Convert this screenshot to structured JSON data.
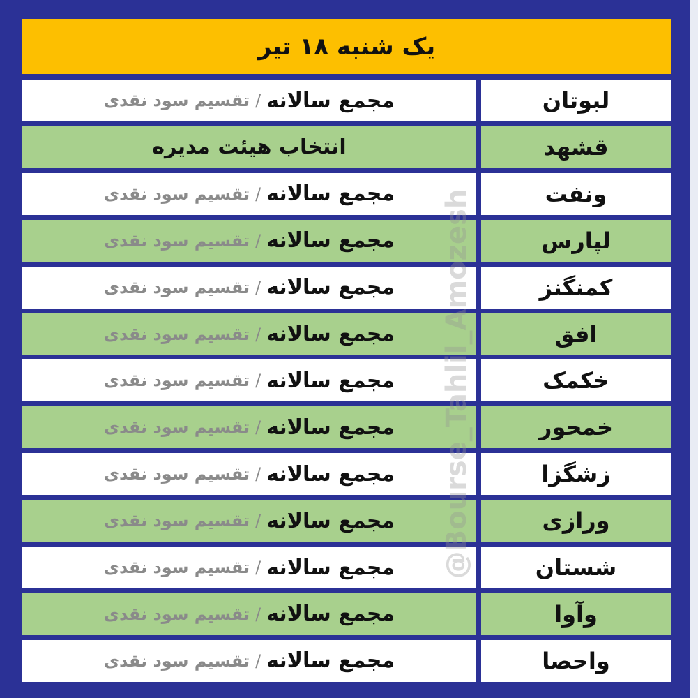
{
  "header": {
    "title": "یک شنبه ۱۸ تیر"
  },
  "colors": {
    "background": "#2b3196",
    "header": "#fdbf00",
    "row_green": "#a8d08d",
    "row_white": "#ffffff",
    "subtext": "#8a8a8a"
  },
  "watermark": "@Bourse_Tahlil_Amozesh",
  "rows": [
    {
      "symbol": "لبوتان",
      "event": "مجمع سالانه",
      "sep": "/",
      "detail": "تقسیم سود نقدی",
      "shade": "white"
    },
    {
      "symbol": "قشهد",
      "event": "انتخاب هیئت مدیره",
      "sep": "",
      "detail": "",
      "shade": "green"
    },
    {
      "symbol": "ونفت",
      "event": "مجمع سالانه",
      "sep": "/",
      "detail": "تقسیم سود نقدی",
      "shade": "white"
    },
    {
      "symbol": "لپارس",
      "event": "مجمع سالانه",
      "sep": "/",
      "detail": "تقسیم سود نقدی",
      "shade": "green"
    },
    {
      "symbol": "کمنگنز",
      "event": "مجمع سالانه",
      "sep": "/",
      "detail": "تقسیم سود نقدی",
      "shade": "white"
    },
    {
      "symbol": "افق",
      "event": "مجمع سالانه",
      "sep": "/",
      "detail": "تقسیم سود نقدی",
      "shade": "green"
    },
    {
      "symbol": "خکمک",
      "event": "مجمع سالانه",
      "sep": "/",
      "detail": "تقسیم سود نقدی",
      "shade": "white"
    },
    {
      "symbol": "خمحور",
      "event": "مجمع سالانه",
      "sep": "/",
      "detail": "تقسیم سود نقدی",
      "shade": "green"
    },
    {
      "symbol": "زشگزا",
      "event": "مجمع سالانه",
      "sep": "/",
      "detail": "تقسیم سود نقدی",
      "shade": "white"
    },
    {
      "symbol": "ورازی",
      "event": "مجمع سالانه",
      "sep": "/",
      "detail": "تقسیم سود نقدی",
      "shade": "green"
    },
    {
      "symbol": "شستان",
      "event": "مجمع سالانه",
      "sep": "/",
      "detail": "تقسیم سود نقدی",
      "shade": "white"
    },
    {
      "symbol": "وآوا",
      "event": "مجمع سالانه",
      "sep": "/",
      "detail": "تقسیم سود نقدی",
      "shade": "green"
    },
    {
      "symbol": "واحصا",
      "event": "مجمع سالانه",
      "sep": "/",
      "detail": "تقسیم سود نقدی",
      "shade": "white"
    }
  ]
}
